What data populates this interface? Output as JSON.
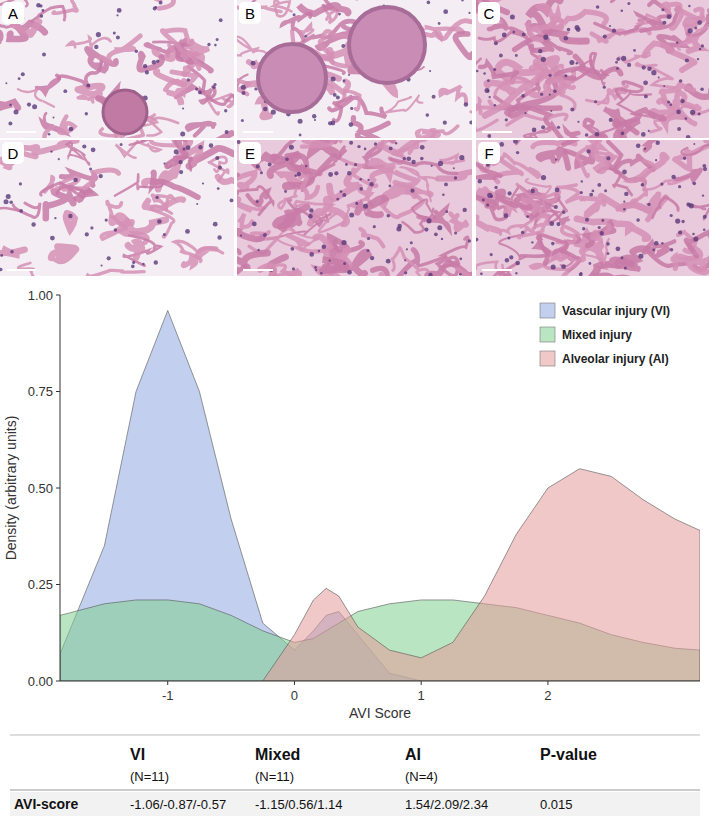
{
  "panels": {
    "labels": [
      "A",
      "B",
      "C",
      "D",
      "E",
      "F"
    ]
  },
  "chart_data": {
    "type": "area",
    "x_label": "AVI Score",
    "y_label": "Density (arbitrary units)",
    "x": [
      -1.85,
      -1.5,
      -1.25,
      -1,
      -0.75,
      -0.5,
      -0.25,
      0,
      0.15,
      0.25,
      0.35,
      0.5,
      0.75,
      1,
      1.25,
      1.5,
      1.75,
      2,
      2.25,
      2.5,
      2.75,
      3,
      3.2
    ],
    "series": [
      {
        "name": "Vascular injury (VI)",
        "color": "#8fa8e0",
        "values": [
          0.07,
          0.35,
          0.75,
          0.96,
          0.75,
          0.42,
          0.15,
          0.08,
          0.13,
          0.17,
          0.18,
          0.12,
          0.02,
          0.0,
          null,
          null,
          null,
          null,
          null,
          null,
          null,
          null,
          null
        ]
      },
      {
        "name": "Mixed injury",
        "color": "#7fcf8f",
        "values": [
          0.17,
          0.2,
          0.21,
          0.21,
          0.2,
          0.17,
          0.13,
          0.1,
          0.11,
          0.13,
          0.15,
          0.18,
          0.2,
          0.21,
          0.21,
          0.2,
          0.19,
          0.17,
          0.15,
          0.12,
          0.1,
          0.085,
          0.08
        ]
      },
      {
        "name": "Alveolar injury (AI)",
        "color": "#e59a9a",
        "values": [
          null,
          null,
          null,
          null,
          null,
          null,
          0.0,
          0.12,
          0.21,
          0.24,
          0.22,
          0.14,
          0.08,
          0.06,
          0.1,
          0.22,
          0.38,
          0.5,
          0.55,
          0.53,
          0.47,
          0.42,
          0.39
        ]
      }
    ],
    "xlim": [
      -1.85,
      3.2
    ],
    "xticks": [
      -1,
      0,
      1,
      2
    ],
    "ylim": [
      0,
      1
    ],
    "yticks": [
      {
        "value": 0,
        "label": "0.00"
      },
      {
        "value": 0.25,
        "label": "0.25"
      },
      {
        "value": 0.5,
        "label": "0.50"
      },
      {
        "value": 0.75,
        "label": "0.75"
      },
      {
        "value": 1,
        "label": "1.00"
      }
    ],
    "legend": "upper right",
    "grid": false
  },
  "table": {
    "columns": [
      "VI",
      "Mixed",
      "AI",
      "P-value"
    ],
    "counts": [
      "(N=11)",
      "(N=11)",
      "(N=4)"
    ],
    "rows": [
      {
        "label": "AVI-score",
        "cells": [
          "-1.06/-0.87/-0.57",
          "-1.15/0.56/1.14",
          "1.54/2.09/2.34",
          "0.015"
        ]
      }
    ]
  }
}
